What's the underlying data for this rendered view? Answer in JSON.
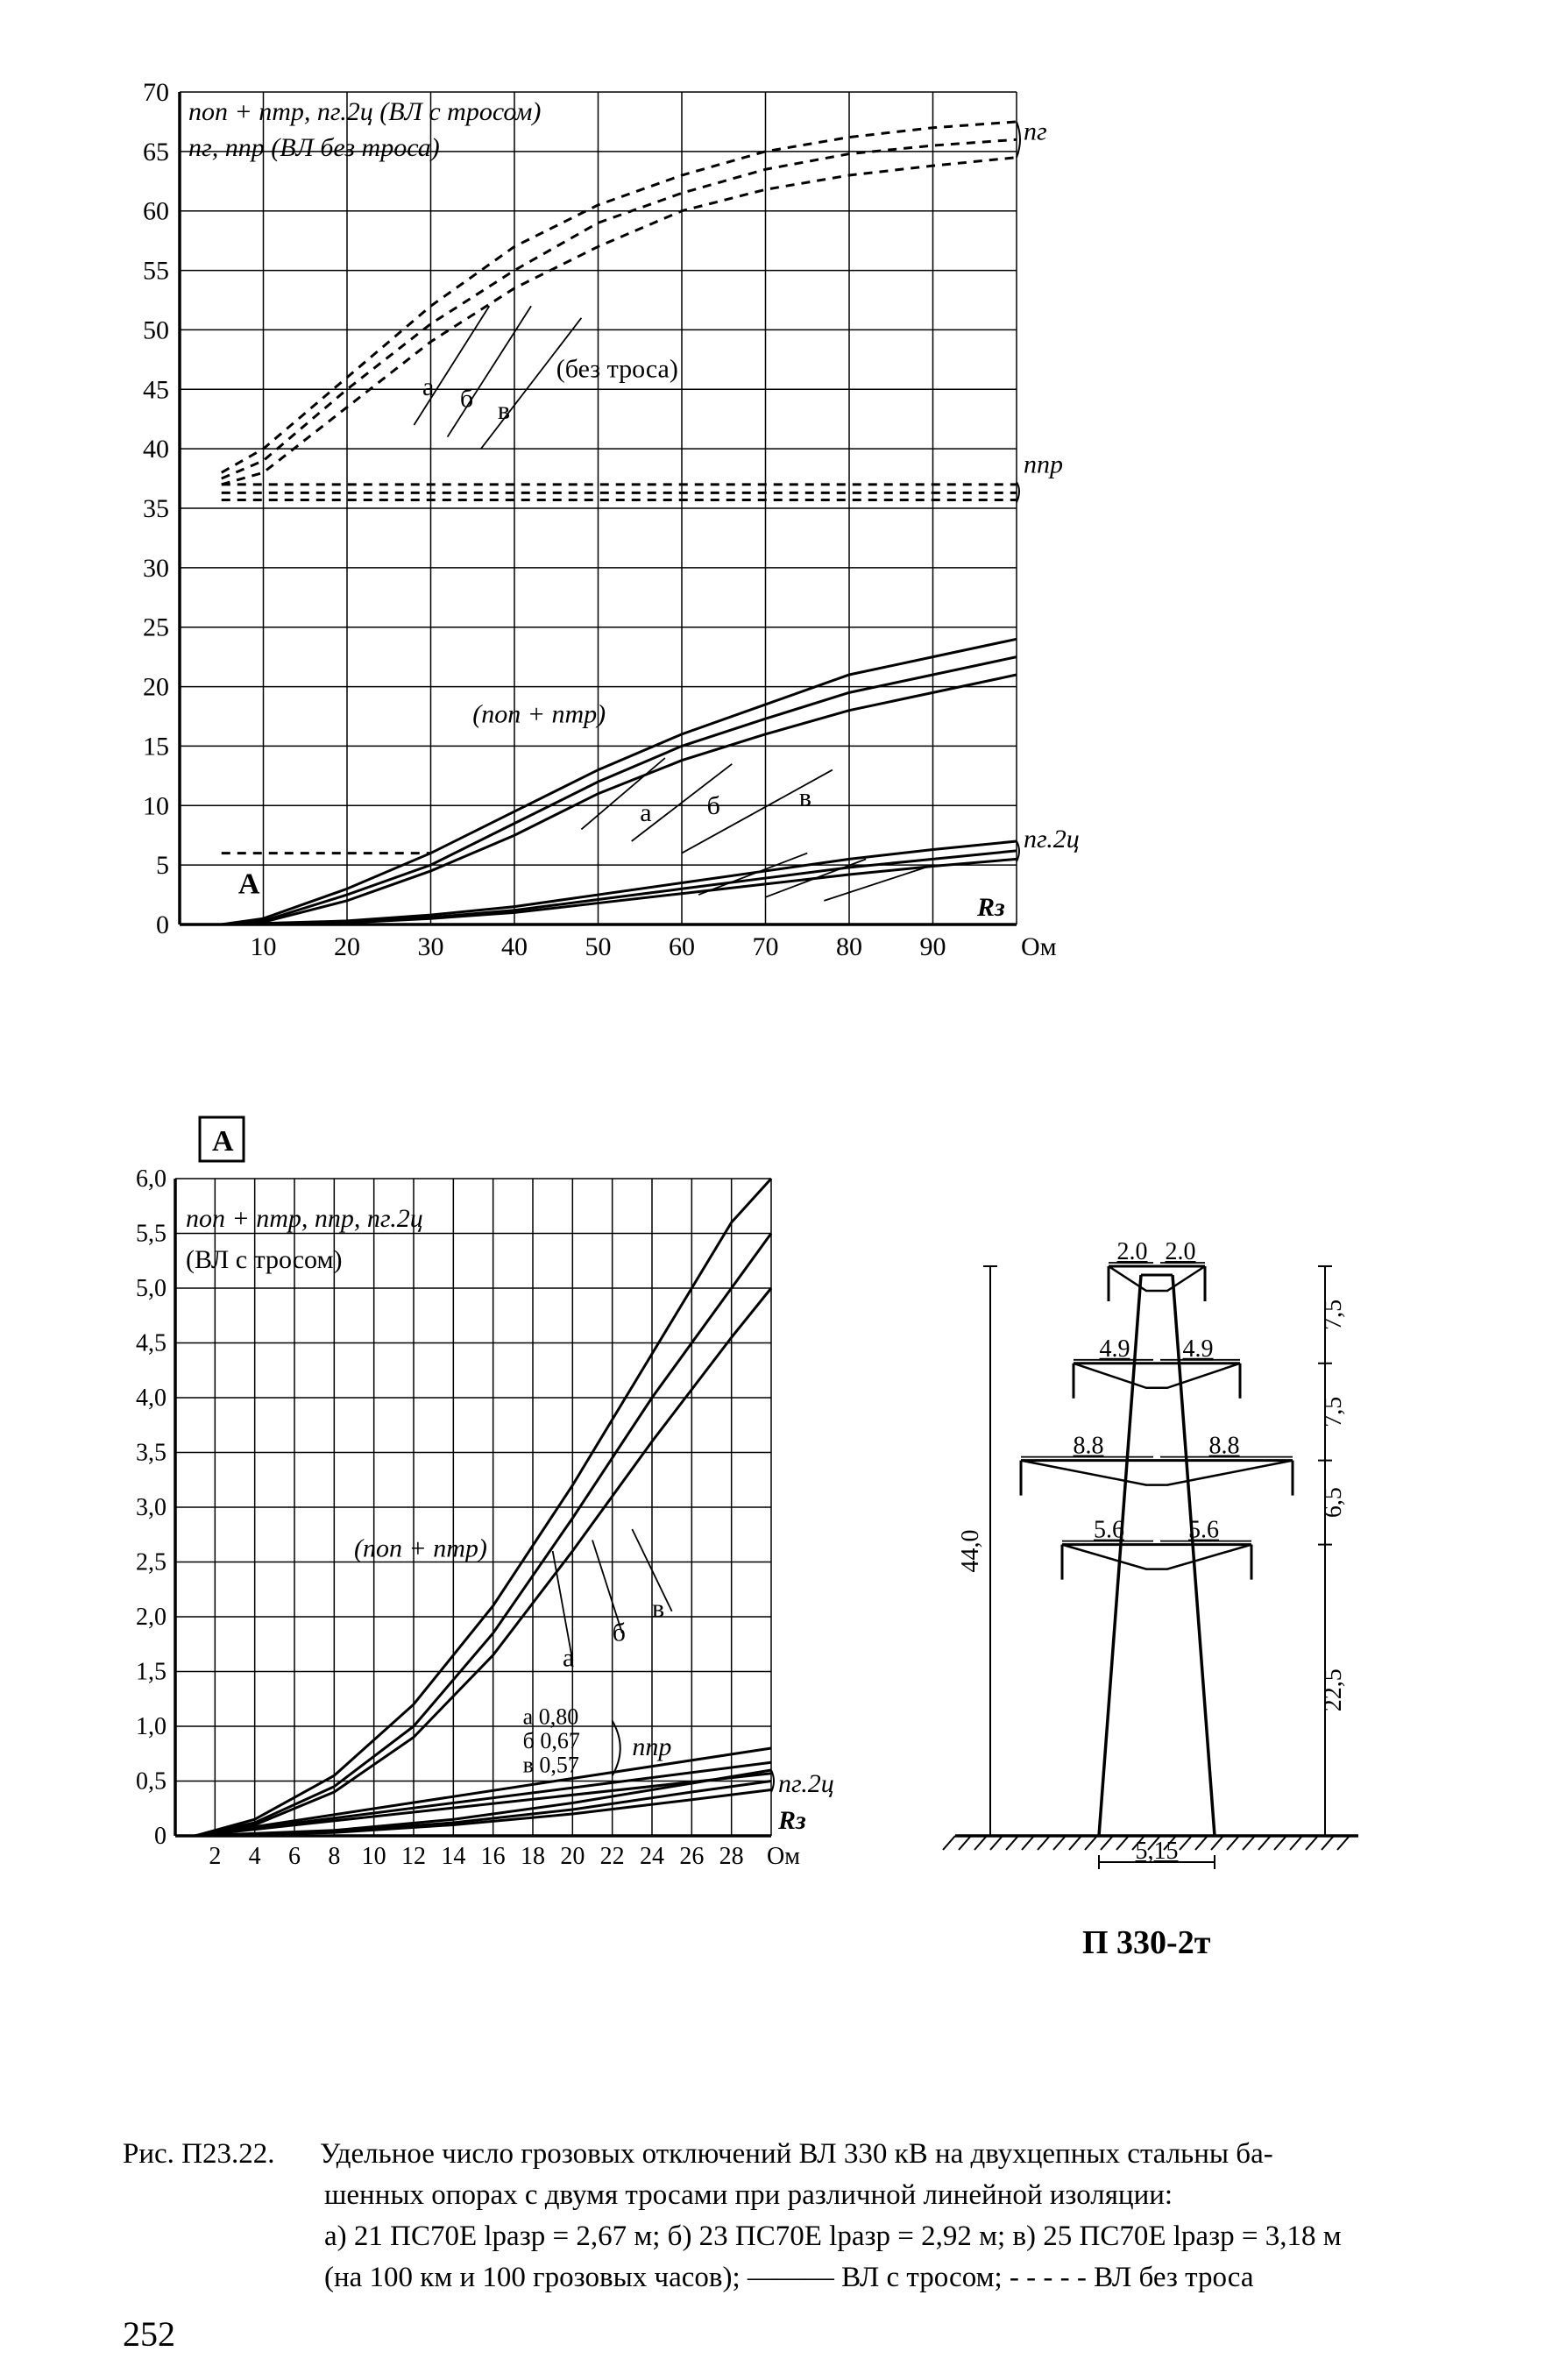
{
  "page_number": "252",
  "figure_label": "Рис. П23.22.",
  "caption_main_1": "Удельное число грозовых отключений ВЛ 330 кВ на двухцепных стальны ба-",
  "caption_main_2": "шенных опорах с двумя тросами при различной линейной изоляции:",
  "caption_main_3": "а) 21 ПС70Е lразр = 2,67 м; б) 23 ПС70Е lразр = 2,92 м; в) 25 ПС70Е lразр = 3,18 м",
  "caption_main_4": "(на 100 км и 100 грозовых часов); ——— ВЛ с тросом;  - - - - -  ВЛ без троса",
  "tower_label": "П 330-2т",
  "chart1": {
    "type": "line",
    "background_color": "#ffffff",
    "grid_color": "#000000",
    "axis_color": "#000000",
    "line_color": "#000000",
    "font_size_ticks": 30,
    "font_size_labels": 30,
    "xlim": [
      0,
      100
    ],
    "ylim": [
      0,
      70
    ],
    "xticks": [
      10,
      20,
      30,
      40,
      50,
      60,
      70,
      80,
      90
    ],
    "yticks": [
      0,
      5,
      10,
      15,
      20,
      25,
      30,
      35,
      40,
      45,
      50,
      55,
      60,
      65,
      70
    ],
    "x_unit_label": "Ом",
    "x_axis_right_label": "Rз",
    "annotations": {
      "top1": "nоп + nтр, nг.2ц (ВЛ с тросом)",
      "top2": "nг, nпр (ВЛ без троса)",
      "bez_trosa": "(без троса)",
      "non_ntr": "(nоп + nтр)",
      "ng": "nг",
      "npr": "nпр",
      "ng2c": "nг.2ц",
      "a": "а",
      "b": "б",
      "v": "в",
      "A_box": "A"
    },
    "line_width_axis": 3.5,
    "line_width_grid": 1.5,
    "line_width_curves": 3,
    "line_width_dashed": 3,
    "dash_pattern": "10,8",
    "series_solid_upper": {
      "a": [
        [
          5,
          0
        ],
        [
          10,
          0.5
        ],
        [
          20,
          3
        ],
        [
          30,
          6
        ],
        [
          40,
          9.5
        ],
        [
          50,
          13
        ],
        [
          60,
          16
        ],
        [
          70,
          18.5
        ],
        [
          80,
          21
        ],
        [
          90,
          22.5
        ],
        [
          100,
          24
        ]
      ],
      "b": [
        [
          5,
          0
        ],
        [
          10,
          0.3
        ],
        [
          20,
          2.5
        ],
        [
          30,
          5
        ],
        [
          40,
          8.5
        ],
        [
          50,
          12
        ],
        [
          60,
          15
        ],
        [
          70,
          17.3
        ],
        [
          80,
          19.5
        ],
        [
          90,
          21
        ],
        [
          100,
          22.5
        ]
      ],
      "v": [
        [
          5,
          0
        ],
        [
          10,
          0.2
        ],
        [
          20,
          2
        ],
        [
          30,
          4.5
        ],
        [
          40,
          7.5
        ],
        [
          50,
          11
        ],
        [
          60,
          13.8
        ],
        [
          70,
          16
        ],
        [
          80,
          18
        ],
        [
          90,
          19.5
        ],
        [
          100,
          21
        ]
      ]
    },
    "series_solid_lower": {
      "a": [
        [
          5,
          0
        ],
        [
          20,
          0.3
        ],
        [
          30,
          0.8
        ],
        [
          40,
          1.5
        ],
        [
          50,
          2.5
        ],
        [
          60,
          3.5
        ],
        [
          70,
          4.5
        ],
        [
          80,
          5.5
        ],
        [
          90,
          6.3
        ],
        [
          100,
          7
        ]
      ],
      "b": [
        [
          5,
          0
        ],
        [
          20,
          0.2
        ],
        [
          30,
          0.6
        ],
        [
          40,
          1.2
        ],
        [
          50,
          2.1
        ],
        [
          60,
          3
        ],
        [
          70,
          3.9
        ],
        [
          80,
          4.8
        ],
        [
          90,
          5.5
        ],
        [
          100,
          6.2
        ]
      ],
      "v": [
        [
          5,
          0
        ],
        [
          20,
          0.15
        ],
        [
          30,
          0.5
        ],
        [
          40,
          1
        ],
        [
          50,
          1.8
        ],
        [
          60,
          2.6
        ],
        [
          70,
          3.4
        ],
        [
          80,
          4.2
        ],
        [
          90,
          4.9
        ],
        [
          100,
          5.5
        ]
      ]
    },
    "series_dashed_ng": {
      "a": [
        [
          5,
          38
        ],
        [
          10,
          40
        ],
        [
          20,
          46
        ],
        [
          30,
          52
        ],
        [
          40,
          57
        ],
        [
          50,
          60.5
        ],
        [
          60,
          63
        ],
        [
          70,
          65
        ],
        [
          80,
          66.2
        ],
        [
          90,
          67
        ],
        [
          100,
          67.5
        ]
      ],
      "b": [
        [
          5,
          37.5
        ],
        [
          10,
          39
        ],
        [
          20,
          45
        ],
        [
          30,
          50.5
        ],
        [
          40,
          55
        ],
        [
          50,
          59
        ],
        [
          60,
          61.5
        ],
        [
          70,
          63.5
        ],
        [
          80,
          64.8
        ],
        [
          90,
          65.5
        ],
        [
          100,
          66
        ]
      ],
      "v": [
        [
          5,
          37
        ],
        [
          10,
          38
        ],
        [
          20,
          43.5
        ],
        [
          30,
          49
        ],
        [
          40,
          53.5
        ],
        [
          50,
          57
        ],
        [
          60,
          60
        ],
        [
          70,
          61.8
        ],
        [
          80,
          63
        ],
        [
          90,
          63.8
        ],
        [
          100,
          64.5
        ]
      ]
    },
    "series_dashed_npr": {
      "a": [
        [
          5,
          37
        ],
        [
          100,
          37
        ]
      ],
      "b": [
        [
          5,
          36.3
        ],
        [
          100,
          36.3
        ]
      ],
      "v": [
        [
          5,
          35.7
        ],
        [
          100,
          35.7
        ]
      ]
    },
    "series_dash_A": [
      [
        5,
        6
      ],
      [
        30,
        6
      ]
    ],
    "pointer_lines": {
      "upper_abc": [
        [
          [
            28,
            42
          ],
          [
            37,
            52
          ]
        ],
        [
          [
            32,
            41
          ],
          [
            42,
            52
          ]
        ],
        [
          [
            36,
            40
          ],
          [
            48,
            51
          ]
        ]
      ],
      "mid_abc": [
        [
          [
            48,
            8
          ],
          [
            58,
            14
          ]
        ],
        [
          [
            54,
            7
          ],
          [
            66,
            13.5
          ]
        ],
        [
          [
            60,
            6
          ],
          [
            78,
            13
          ]
        ]
      ],
      "low_abc": [
        [
          [
            62,
            2.5
          ],
          [
            75,
            6
          ]
        ],
        [
          [
            70,
            2.3
          ],
          [
            82,
            5.5
          ]
        ],
        [
          [
            77,
            2
          ],
          [
            90,
            5
          ]
        ]
      ]
    }
  },
  "chart2": {
    "type": "line",
    "background_color": "#ffffff",
    "grid_color": "#000000",
    "axis_color": "#000000",
    "line_color": "#000000",
    "font_size_ticks": 28,
    "font_size_labels": 30,
    "xlim": [
      0,
      30
    ],
    "ylim": [
      0,
      6.0
    ],
    "xticks": [
      2,
      4,
      6,
      8,
      10,
      12,
      14,
      16,
      18,
      20,
      22,
      24,
      26,
      28
    ],
    "yticks": [
      0,
      0.5,
      1.0,
      1.5,
      2.0,
      2.5,
      3.0,
      3.5,
      4.0,
      4.5,
      5.0,
      5.5,
      6.0
    ],
    "ytick_labels": [
      "0",
      "0,5",
      "1,0",
      "1,5",
      "2,0",
      "2,5",
      "3,0",
      "3,5",
      "4,0",
      "4,5",
      "5,0",
      "5,5",
      "6,0"
    ],
    "x_unit_label": "Ом",
    "x_axis_right_label": "Rз",
    "A_box": "A",
    "annotations": {
      "top": "nоп + nтр, nпр, nг.2ц",
      "top2": "(ВЛ с тросом)",
      "non_ntr": "(nоп + nтр)",
      "npr": "nпр",
      "ng2c": "nг.2ц",
      "npr_vals": [
        "а 0,80",
        "б 0,67",
        "в 0,57"
      ],
      "a": "а",
      "b": "б",
      "v": "в"
    },
    "line_width_axis": 3.5,
    "line_width_grid": 1.5,
    "line_width_curves": 3,
    "series_main": {
      "a": [
        [
          1,
          0
        ],
        [
          4,
          0.15
        ],
        [
          8,
          0.55
        ],
        [
          12,
          1.2
        ],
        [
          16,
          2.1
        ],
        [
          20,
          3.2
        ],
        [
          24,
          4.4
        ],
        [
          28,
          5.6
        ],
        [
          30,
          6.0
        ]
      ],
      "b": [
        [
          1,
          0
        ],
        [
          4,
          0.12
        ],
        [
          8,
          0.45
        ],
        [
          12,
          1.0
        ],
        [
          16,
          1.85
        ],
        [
          20,
          2.9
        ],
        [
          24,
          4.0
        ],
        [
          28,
          5.0
        ],
        [
          30,
          5.5
        ]
      ],
      "v": [
        [
          1,
          0
        ],
        [
          4,
          0.1
        ],
        [
          8,
          0.4
        ],
        [
          12,
          0.9
        ],
        [
          16,
          1.65
        ],
        [
          20,
          2.6
        ],
        [
          24,
          3.6
        ],
        [
          28,
          4.55
        ],
        [
          30,
          5.0
        ]
      ]
    },
    "series_npr": {
      "a": [
        [
          1,
          0
        ],
        [
          30,
          0.8
        ]
      ],
      "b": [
        [
          1,
          0
        ],
        [
          30,
          0.67
        ]
      ],
      "v": [
        [
          1,
          0
        ],
        [
          30,
          0.57
        ]
      ]
    },
    "series_ng2c": {
      "a": [
        [
          1,
          0
        ],
        [
          8,
          0.05
        ],
        [
          14,
          0.15
        ],
        [
          20,
          0.3
        ],
        [
          26,
          0.48
        ],
        [
          30,
          0.6
        ]
      ],
      "b": [
        [
          1,
          0
        ],
        [
          8,
          0.04
        ],
        [
          14,
          0.12
        ],
        [
          20,
          0.24
        ],
        [
          26,
          0.4
        ],
        [
          30,
          0.5
        ]
      ],
      "v": [
        [
          1,
          0
        ],
        [
          8,
          0.03
        ],
        [
          14,
          0.1
        ],
        [
          20,
          0.2
        ],
        [
          26,
          0.33
        ],
        [
          30,
          0.42
        ]
      ]
    }
  },
  "tower": {
    "type": "diagram",
    "line_color": "#000000",
    "line_width": 3,
    "font_size": 28,
    "total_height_label": "44,0",
    "dims_left": [
      "4.9",
      "8.8",
      "5.6"
    ],
    "dims_right": [
      "2.0",
      "4.9",
      "8.8",
      "5.6"
    ],
    "dims_right_outer": [
      "7,5",
      "7,5",
      "6,5",
      "22,5"
    ],
    "dim_top_left": "2.0",
    "dim_top_right": "2.0",
    "dim_base": "5,15"
  }
}
